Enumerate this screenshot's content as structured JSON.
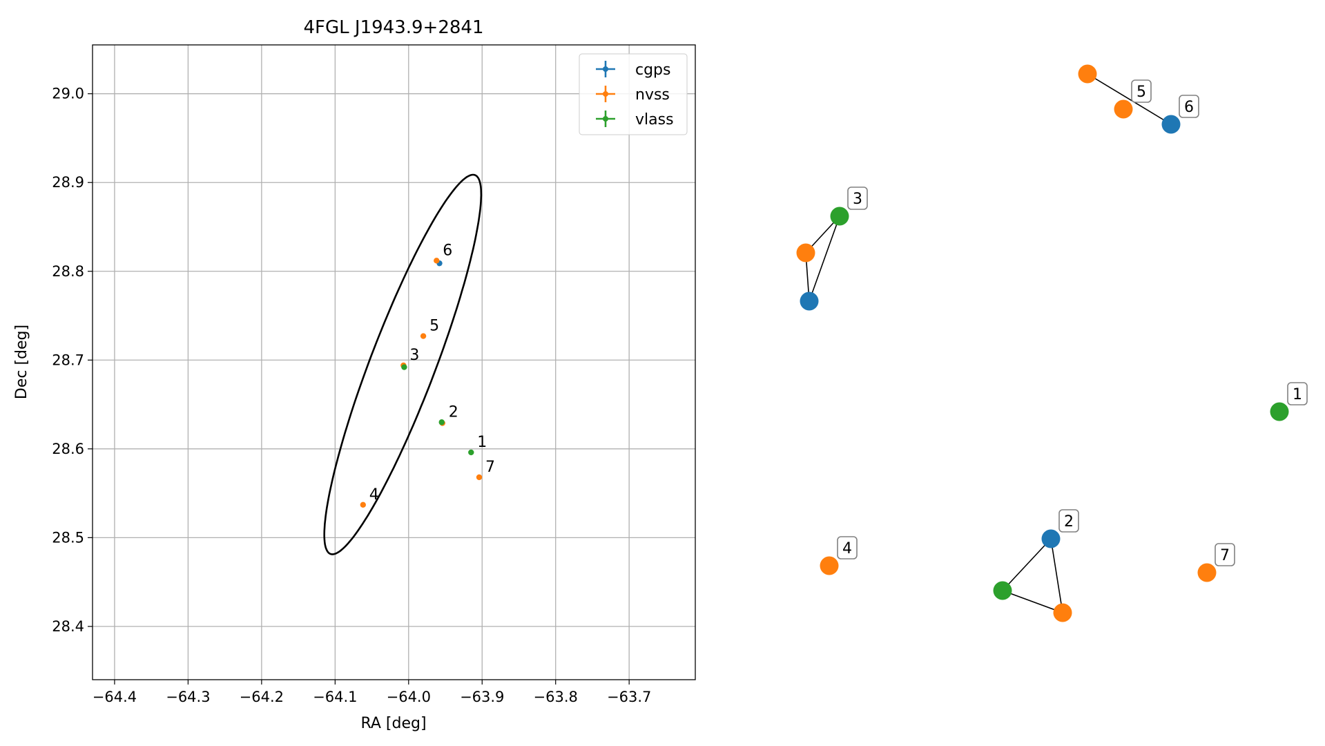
{
  "figure": {
    "title": "4FGL J1943.9+2841"
  },
  "colors": {
    "cgps": "#1f77b4",
    "nvss": "#ff7f0e",
    "vlass": "#2ca02c",
    "grid": "#b0b0b0",
    "axes": "#000000"
  },
  "chart_data": [
    {
      "type": "scatter",
      "title": "4FGL J1943.9+2841",
      "xlabel": "RA [deg]",
      "ylabel": "Dec [deg]",
      "xlim": [
        -64.43,
        -63.61
      ],
      "ylim": [
        28.34,
        29.055
      ],
      "xticks": [
        -64.4,
        -64.3,
        -64.2,
        -64.1,
        -64.0,
        -63.9,
        -63.8,
        -63.7
      ],
      "xtick_labels": [
        "−64.4",
        "−64.3",
        "−64.2",
        "−64.1",
        "−64.0",
        "−63.9",
        "−63.8",
        "−63.7"
      ],
      "yticks": [
        28.4,
        28.5,
        28.6,
        28.7,
        28.8,
        28.9,
        29.0
      ],
      "ytick_labels": [
        "28.4",
        "28.5",
        "28.6",
        "28.7",
        "28.8",
        "28.9",
        "29.0"
      ],
      "grid": true,
      "legend_position": "top-right",
      "legend": [
        "cgps",
        "nvss",
        "vlass"
      ],
      "series": [
        {
          "name": "cgps",
          "points": [
            {
              "x": -63.958,
              "y": 28.809
            }
          ]
        },
        {
          "name": "nvss",
          "points": [
            {
              "x": -63.962,
              "y": 28.812
            },
            {
              "x": -63.98,
              "y": 28.727
            },
            {
              "x": -64.007,
              "y": 28.694
            },
            {
              "x": -63.954,
              "y": 28.629
            },
            {
              "x": -64.062,
              "y": 28.537
            },
            {
              "x": -63.904,
              "y": 28.568
            }
          ]
        },
        {
          "name": "vlass",
          "points": [
            {
              "x": -64.006,
              "y": 28.692
            },
            {
              "x": -63.955,
              "y": 28.63
            },
            {
              "x": -63.915,
              "y": 28.596
            }
          ]
        }
      ],
      "annotations": [
        {
          "text": "6",
          "x": -63.962,
          "y": 28.812
        },
        {
          "text": "5",
          "x": -63.98,
          "y": 28.727
        },
        {
          "text": "3",
          "x": -64.007,
          "y": 28.694
        },
        {
          "text": "2",
          "x": -63.954,
          "y": 28.63
        },
        {
          "text": "1",
          "x": -63.915,
          "y": 28.596
        },
        {
          "text": "7",
          "x": -63.904,
          "y": 28.568
        },
        {
          "text": "4",
          "x": -64.062,
          "y": 28.537
        }
      ],
      "ellipse": {
        "center": {
          "x": -64.008,
          "y": 28.695
        },
        "semi_axes": [
          0.043,
          0.235
        ],
        "rotation_deg": -25
      }
    },
    {
      "type": "network",
      "nodes": [
        {
          "id": "6",
          "source": "cgps",
          "label": "6"
        },
        {
          "id": "6",
          "source": "nvss"
        },
        {
          "id": "5",
          "source": "nvss",
          "label": "5"
        },
        {
          "id": "3",
          "source": "vlass",
          "label": "3"
        },
        {
          "id": "3",
          "source": "nvss"
        },
        {
          "id": "3",
          "source": "cgps"
        },
        {
          "id": "1",
          "source": "vlass",
          "label": "1"
        },
        {
          "id": "4",
          "source": "nvss",
          "label": "4"
        },
        {
          "id": "2",
          "source": "cgps",
          "label": "2"
        },
        {
          "id": "2",
          "source": "vlass"
        },
        {
          "id": "2",
          "source": "nvss"
        },
        {
          "id": "7",
          "source": "nvss",
          "label": "7"
        }
      ],
      "edges": [
        [
          "6-nvss",
          "6-cgps"
        ],
        [
          "3-nvss",
          "3-vlass"
        ],
        [
          "3-nvss",
          "3-cgps"
        ],
        [
          "3-vlass",
          "3-cgps"
        ],
        [
          "2-cgps",
          "2-vlass"
        ],
        [
          "2-cgps",
          "2-nvss"
        ],
        [
          "2-vlass",
          "2-nvss"
        ]
      ]
    }
  ]
}
